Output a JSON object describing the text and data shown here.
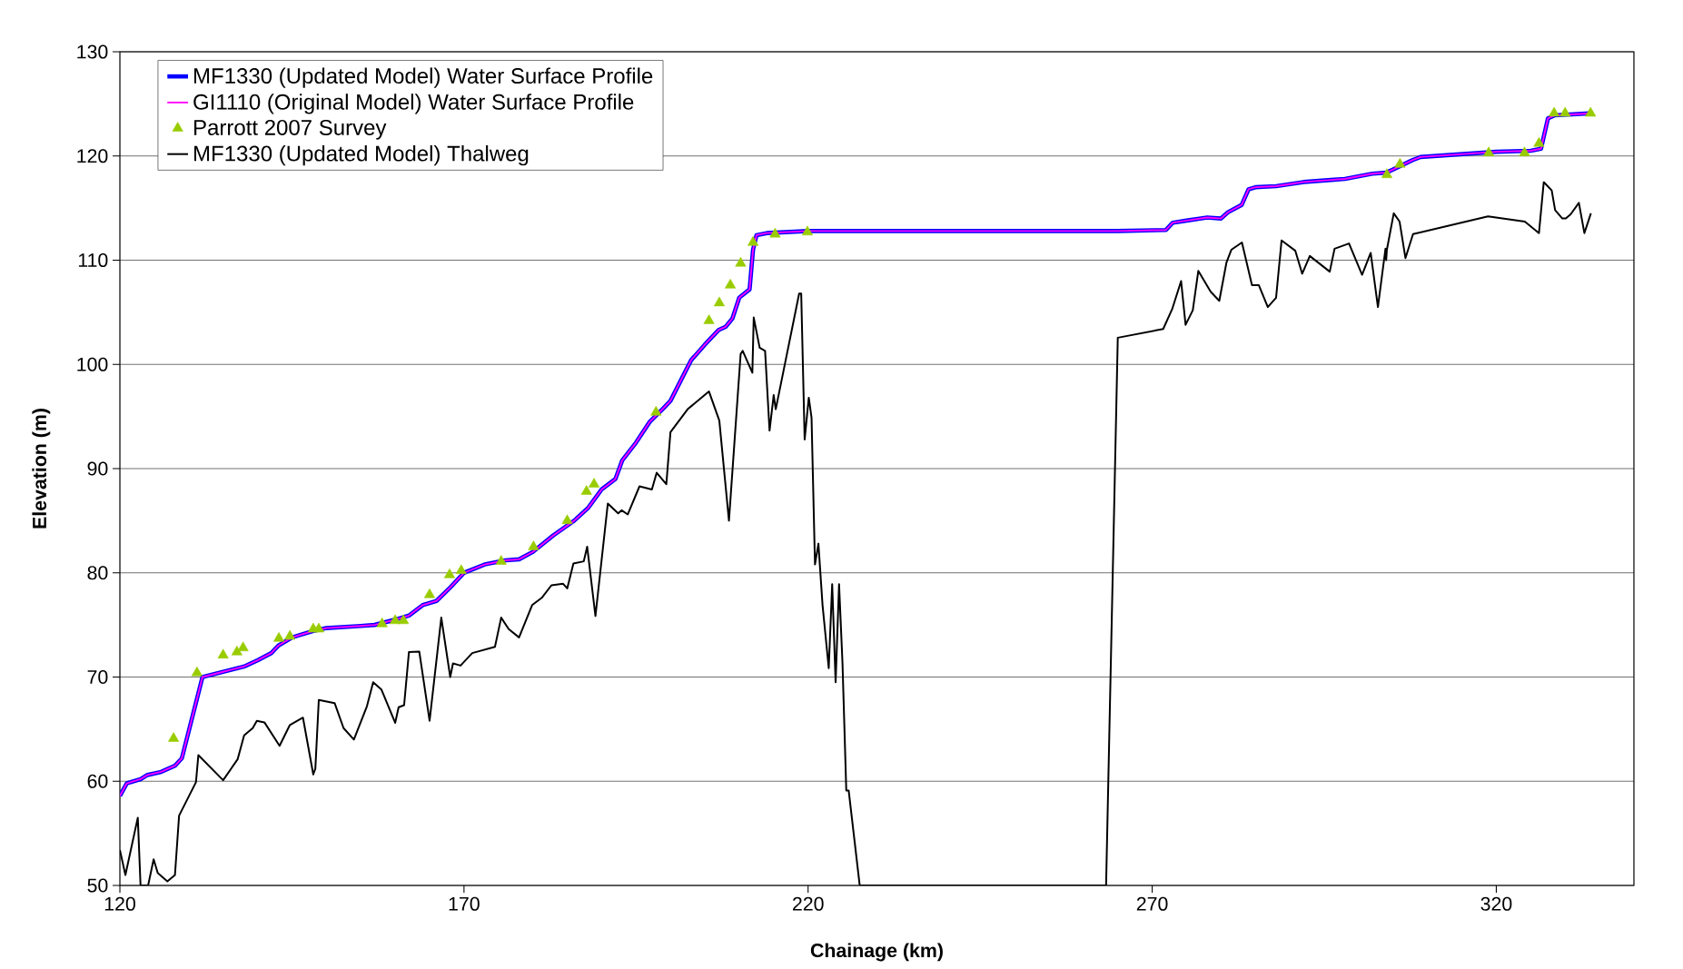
{
  "chart_data": {
    "type": "line",
    "xlabel": "Chainage (km)",
    "ylabel": "Elevation (m)",
    "xlim": [
      120,
      340
    ],
    "ylim": [
      50,
      130
    ],
    "xticks": [
      120,
      170,
      220,
      270,
      320
    ],
    "yticks": [
      50,
      60,
      70,
      80,
      90,
      100,
      110,
      120,
      130
    ],
    "grid": "y",
    "legend": "top left",
    "series": [
      {
        "name": "MF1330 (Updated Model) Water Surface Profile",
        "color": "#0000ff",
        "x": [
          120,
          121,
          123,
          124,
          126,
          128,
          129,
          132,
          135,
          138,
          140,
          142,
          143,
          145,
          148,
          150,
          155,
          157,
          160,
          162,
          164,
          166,
          168,
          170,
          173,
          176,
          178,
          180,
          183,
          186,
          188,
          190,
          192,
          193,
          195,
          197,
          199,
          200,
          203,
          205,
          207,
          208,
          209,
          210,
          211.5,
          212,
          212.5,
          214,
          220,
          265,
          272,
          273,
          275,
          278,
          280,
          281,
          283,
          284,
          285,
          288,
          290,
          292,
          296,
          298,
          302,
          304,
          305,
          307.8,
          309,
          320,
          325,
          326.5,
          327.5,
          328.5,
          334
        ],
        "values": [
          58.6,
          59.8,
          60.2,
          60.6,
          60.9,
          61.5,
          62.2,
          70.0,
          70.5,
          71.0,
          71.6,
          72.3,
          73.0,
          73.8,
          74.4,
          74.7,
          74.9,
          75.0,
          75.5,
          75.9,
          76.9,
          77.3,
          78.6,
          80.0,
          80.8,
          81.2,
          81.3,
          82.0,
          83.6,
          85.0,
          86.2,
          88.0,
          89.0,
          90.8,
          92.5,
          94.5,
          95.8,
          96.5,
          100.4,
          101.9,
          103.3,
          103.6,
          104.4,
          106.4,
          107.2,
          111.0,
          112.4,
          112.6,
          112.8,
          112.8,
          112.9,
          113.6,
          113.8,
          114.1,
          114.0,
          114.6,
          115.3,
          116.8,
          117.0,
          117.1,
          117.3,
          117.5,
          117.7,
          117.8,
          118.3,
          118.4,
          118.7,
          119.6,
          119.9,
          120.4,
          120.5,
          120.7,
          123.6,
          123.9,
          124.1
        ]
      },
      {
        "name": "GI1110 (Original Model) Water Surface Profile",
        "color": "#ff00ff",
        "x": [
          120,
          121,
          123,
          124,
          126,
          128,
          129,
          132,
          135,
          138,
          140,
          142,
          143,
          145,
          148,
          150,
          155,
          157,
          160,
          162,
          164,
          166,
          168,
          170,
          173,
          176,
          178,
          180,
          183,
          186,
          188,
          190,
          192,
          193,
          195,
          197,
          199,
          200,
          203,
          205,
          207,
          208,
          209,
          210,
          211.5,
          212,
          212.5,
          214,
          220,
          265,
          272,
          273,
          275,
          278,
          280,
          281,
          283,
          284,
          285,
          288,
          290,
          292,
          296,
          298,
          302,
          304,
          305,
          307.8,
          309,
          320,
          325,
          326.5,
          327.5,
          328.5,
          334
        ],
        "values": [
          58.6,
          59.8,
          60.2,
          60.6,
          60.9,
          61.5,
          62.2,
          70.0,
          70.5,
          71.0,
          71.6,
          72.3,
          73.0,
          73.8,
          74.4,
          74.7,
          74.9,
          75.0,
          75.5,
          75.9,
          76.9,
          77.3,
          78.6,
          80.0,
          80.8,
          81.2,
          81.3,
          82.0,
          83.6,
          85.0,
          86.2,
          88.0,
          89.0,
          90.8,
          92.5,
          94.5,
          95.8,
          96.5,
          100.4,
          101.9,
          103.3,
          103.6,
          104.4,
          106.4,
          107.2,
          111.0,
          112.4,
          112.6,
          112.8,
          112.8,
          112.9,
          113.6,
          113.8,
          114.1,
          114.0,
          114.6,
          115.3,
          116.8,
          117.0,
          117.1,
          117.3,
          117.5,
          117.7,
          117.8,
          118.3,
          118.4,
          118.7,
          119.6,
          119.9,
          120.4,
          120.5,
          120.7,
          123.6,
          123.9,
          124.1
        ]
      },
      {
        "name": "Parrott 2007 Survey",
        "color": "#99cc00",
        "type": "scatter",
        "marker": "triangle",
        "x": [
          127.8,
          131.2,
          135.0,
          137.0,
          137.9,
          143.1,
          144.7,
          148.1,
          148.9,
          158.1,
          160.0,
          161.2,
          165.0,
          167.9,
          169.6,
          175.4,
          180.1,
          185.0,
          187.8,
          188.9,
          197.9,
          205.6,
          207.1,
          208.7,
          210.2,
          212.0,
          215.2,
          219.9,
          304.1,
          306.0,
          318.9,
          324.1,
          326.2,
          328.4,
          330.0,
          333.7
        ],
        "values": [
          64.1,
          70.4,
          72.1,
          72.4,
          72.8,
          73.7,
          73.9,
          74.6,
          74.6,
          75.1,
          75.4,
          75.4,
          77.9,
          79.8,
          80.2,
          81.1,
          82.5,
          85.0,
          87.8,
          88.5,
          95.4,
          104.2,
          105.9,
          107.6,
          109.7,
          111.7,
          112.5,
          112.7,
          118.2,
          119.2,
          120.3,
          120.3,
          121.2,
          124.1,
          124.1,
          124.1
        ]
      },
      {
        "name": "MF1330 (Updated Model) Thalweg",
        "color": "#000000",
        "x": [
          120,
          120.8,
          122.6,
          123.0,
          124.1,
          124.9,
          125.5,
          126.9,
          128.0,
          128.6,
          131.05,
          131.4,
          135.0,
          137.1,
          138.05,
          139.3,
          139.9,
          141.0,
          143.2,
          144.7,
          146.6,
          148.1,
          148.4,
          148.9,
          151.2,
          152.5,
          154.0,
          155.9,
          156.8,
          158.0,
          160.0,
          160.5,
          161.3,
          162.0,
          163.5,
          165.0,
          166.7,
          168.0,
          168.4,
          169.5,
          171.2,
          174.5,
          175.4,
          176.5,
          178.0,
          179.9,
          181.3,
          182.7,
          184.4,
          185.0,
          185.9,
          187.4,
          187.9,
          189.1,
          190.9,
          192.4,
          192.9,
          193.8,
          195.5,
          197.3,
          198.0,
          199.4,
          200.0,
          202.5,
          205.6,
          207.1,
          208.5,
          210.2,
          210.5,
          211.9,
          212.1,
          212.96,
          213.75,
          214.4,
          215.0,
          215.3,
          218.7,
          219.0,
          219.5,
          220.1,
          220.5,
          221.0,
          221.5,
          222.1,
          223.0,
          223.5,
          224.0,
          224.5,
          225.0,
          225.55,
          225.9,
          227.5,
          263.3,
          265.0,
          271.6,
          272.9,
          274.2,
          274.85,
          275.9,
          276.7,
          278.5,
          279.75,
          280.8,
          281.5,
          283.04,
          284.5,
          285.5,
          286.8,
          288.0,
          288.8,
          290.8,
          291.8,
          292.9,
          295.8,
          296.5,
          298.6,
          300.5,
          301.75,
          302.8,
          303.9,
          304.0,
          304.1,
          305.1,
          305.95,
          306.8,
          307.9,
          318.8,
          324.15,
          326.2,
          326.9,
          328.05,
          328.55,
          329.6,
          330.1,
          330.8,
          332.0,
          332.8,
          333.75
        ],
        "values": [
          53.4,
          51.0,
          56.5,
          50,
          50,
          52.5,
          51.2,
          50.4,
          51.0,
          56.7,
          59.9,
          62.5,
          60.1,
          62.1,
          64.4,
          65.1,
          65.8,
          65.65,
          63.4,
          65.4,
          66.1,
          60.65,
          61.2,
          67.8,
          67.5,
          65.1,
          64.0,
          67.2,
          69.5,
          68.8,
          65.6,
          67.1,
          67.3,
          72.4,
          72.45,
          65.8,
          75.7,
          70.0,
          71.3,
          71.1,
          72.3,
          72.9,
          75.7,
          74.6,
          73.8,
          76.9,
          77.6,
          78.8,
          78.95,
          78.5,
          80.9,
          81.1,
          82.5,
          75.85,
          86.65,
          85.7,
          86.0,
          85.6,
          88.3,
          88.0,
          89.6,
          88.5,
          93.5,
          95.7,
          97.4,
          94.6,
          85.0,
          101.0,
          101.3,
          99.2,
          104.5,
          101.6,
          101.3,
          93.65,
          97.05,
          95.7,
          106.8,
          106.8,
          92.8,
          96.8,
          94.9,
          80.8,
          82.8,
          76.9,
          70.85,
          78.9,
          69.5,
          78.9,
          71.3,
          59.1,
          59.1,
          50,
          50,
          102.56,
          103.4,
          105.3,
          108.0,
          103.8,
          105.2,
          108.97,
          106.97,
          106.1,
          109.8,
          111.0,
          111.7,
          107.6,
          107.6,
          105.5,
          106.4,
          111.9,
          110.9,
          108.7,
          110.4,
          108.9,
          111.1,
          111.6,
          108.6,
          110.7,
          105.5,
          111.1,
          110.0,
          111.0,
          114.5,
          113.7,
          110.2,
          112.5,
          114.2,
          113.7,
          112.6,
          117.5,
          116.7,
          114.8,
          114.0,
          114.0,
          114.4,
          115.5,
          112.6,
          114.5
        ]
      }
    ]
  }
}
